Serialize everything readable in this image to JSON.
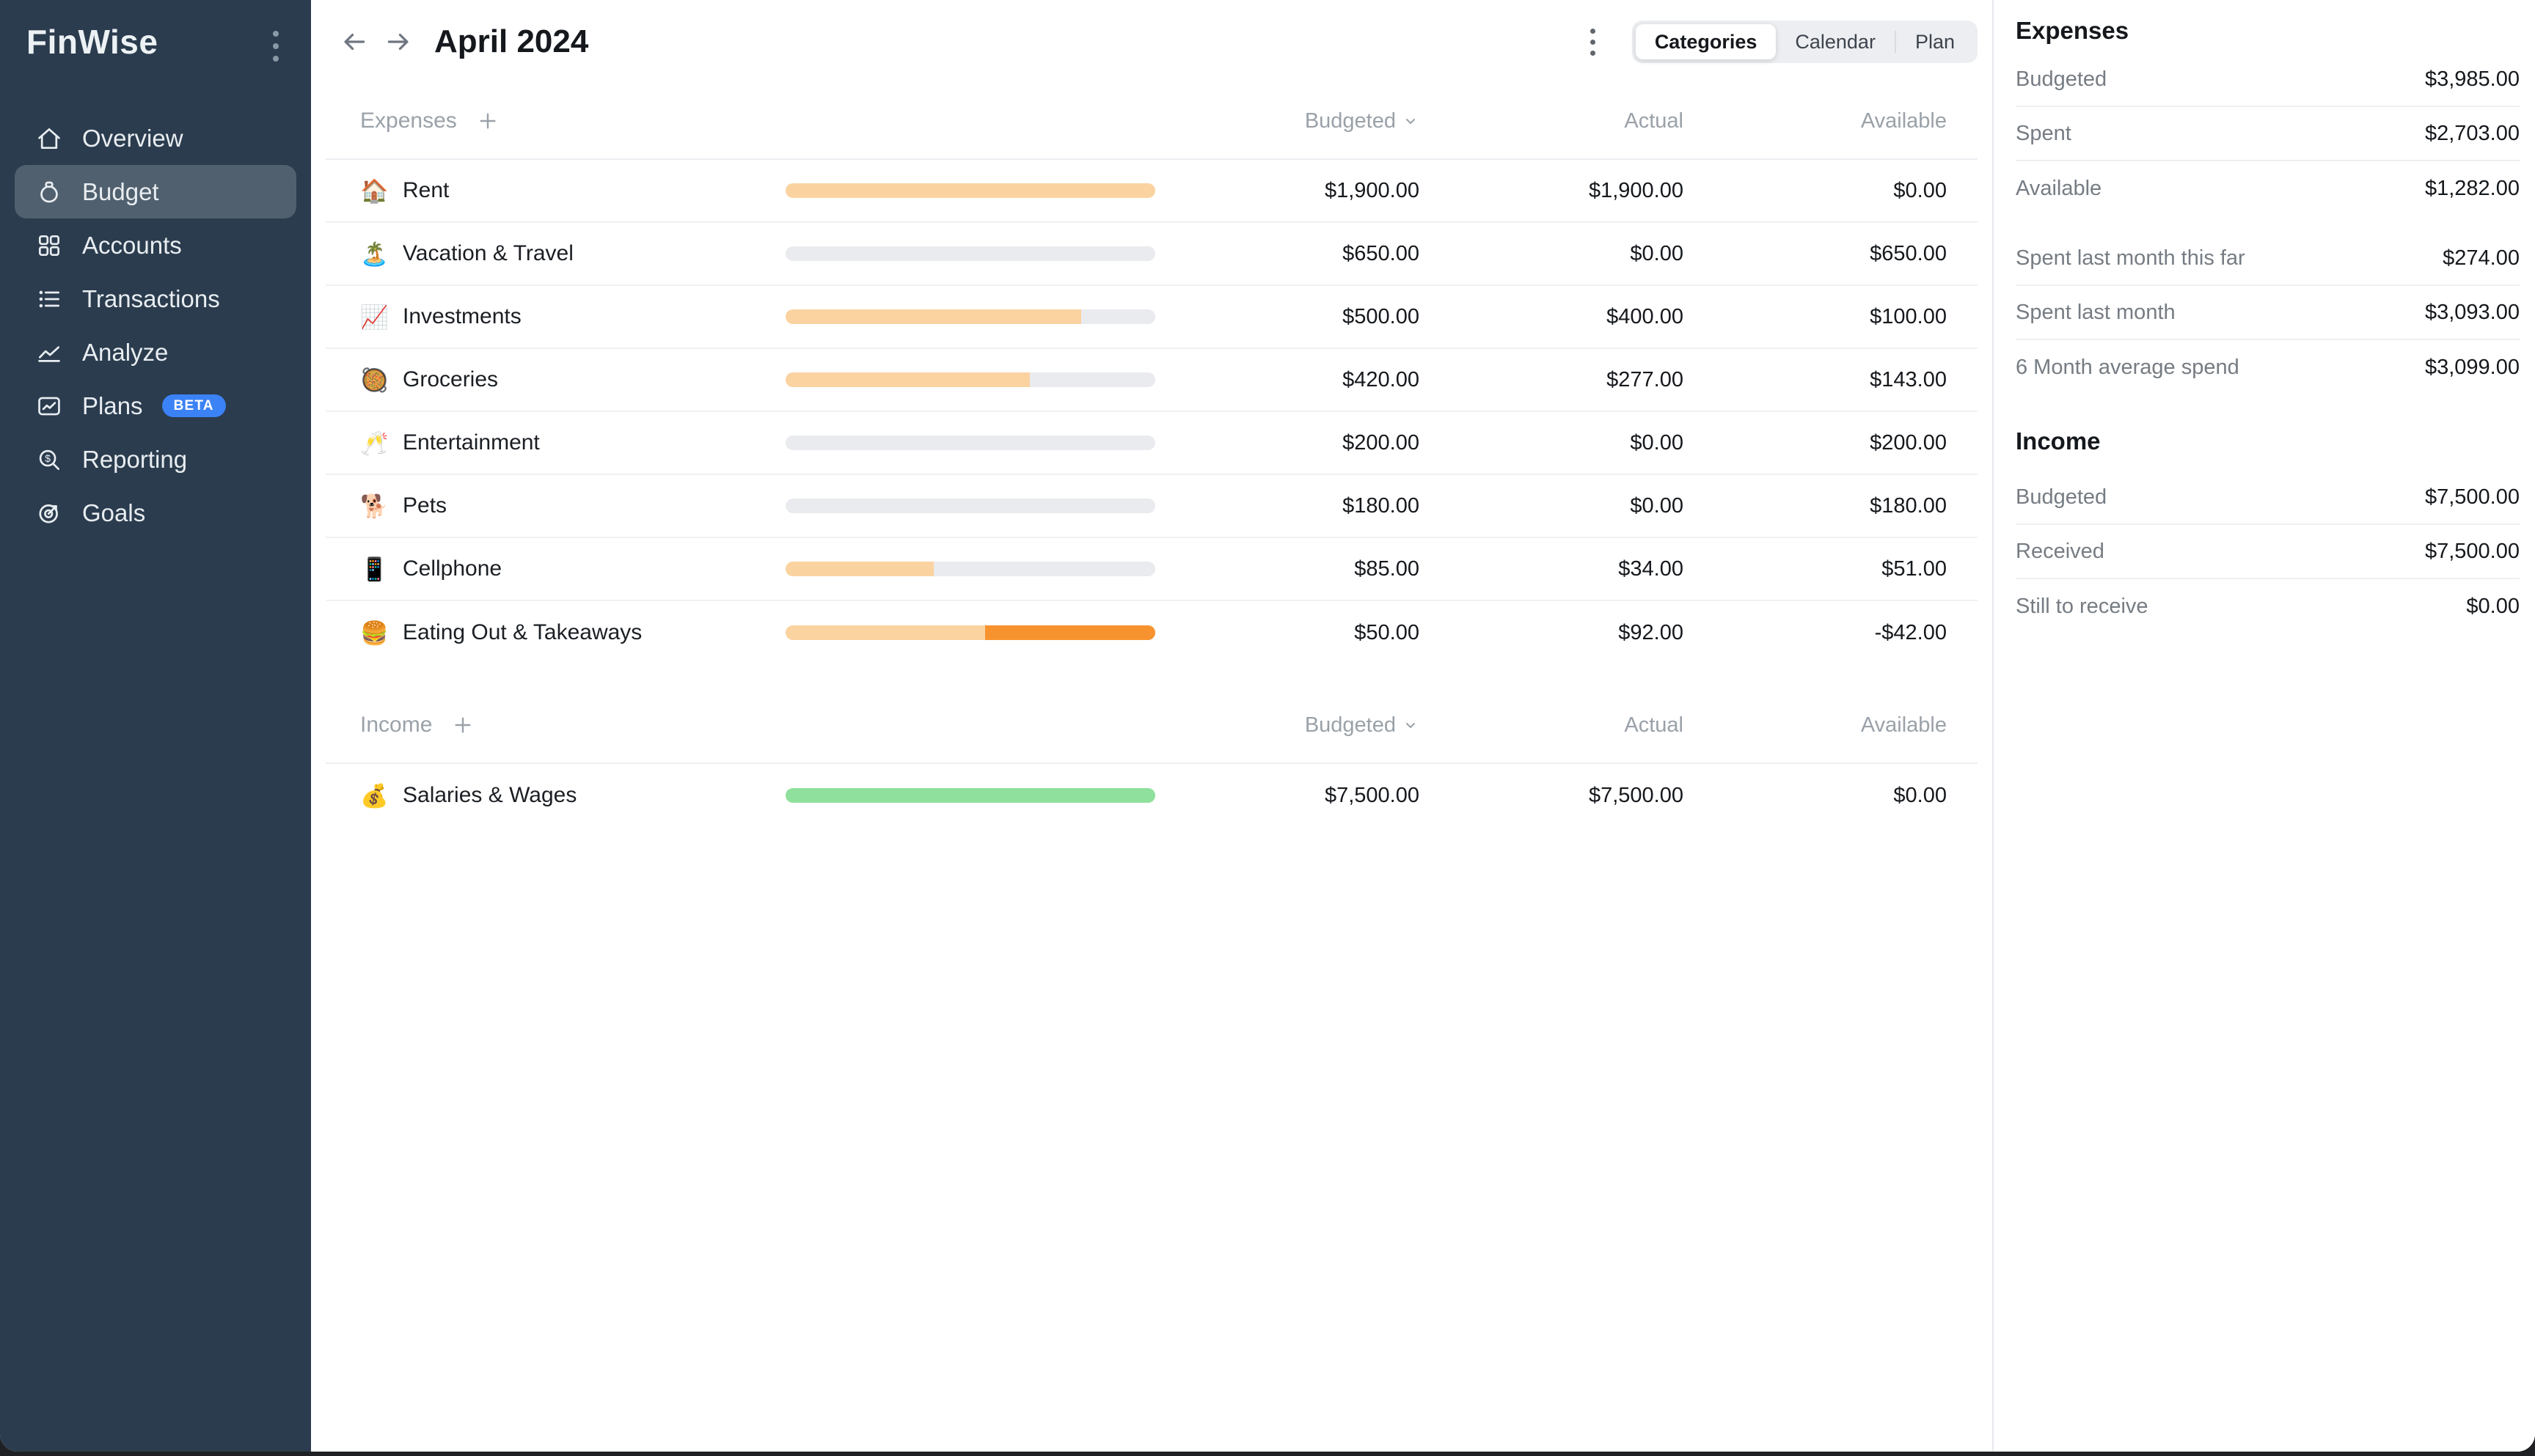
{
  "app": {
    "name": "FinWise"
  },
  "colors": {
    "sidebar_bg": "#2B3C4E",
    "sidebar_active": "#51606E",
    "badge_blue": "#3B82F6",
    "bar_track": "#E9EBEE",
    "bar_expense": "#FAD3A1",
    "bar_overspent": "#F7932F",
    "bar_income": "#8EE09C"
  },
  "sidebar": {
    "items": [
      {
        "label": "Overview",
        "icon": "home-icon",
        "active": false
      },
      {
        "label": "Budget",
        "icon": "money-bag-icon",
        "active": true
      },
      {
        "label": "Accounts",
        "icon": "grid-icon",
        "active": false
      },
      {
        "label": "Transactions",
        "icon": "list-icon",
        "active": false
      },
      {
        "label": "Analyze",
        "icon": "area-chart-icon",
        "active": false
      },
      {
        "label": "Plans",
        "icon": "line-chart-icon",
        "active": false,
        "badge": "BETA"
      },
      {
        "label": "Reporting",
        "icon": "search-dollar-icon",
        "active": false
      },
      {
        "label": "Goals",
        "icon": "target-icon",
        "active": false
      }
    ]
  },
  "header": {
    "title": "April 2024",
    "views": [
      "Categories",
      "Calendar",
      "Plan"
    ],
    "active_view": "Categories"
  },
  "table": {
    "sections": [
      {
        "title": "Expenses",
        "columns": [
          "Budgeted",
          "Actual",
          "Available"
        ],
        "rows": [
          {
            "emoji": "🏠",
            "name": "Rent",
            "budgeted": "$1,900.00",
            "actual": "$1,900.00",
            "available": "$0.00",
            "bar": {
              "fill_pct": 100,
              "over_pct": 0,
              "kind": "expense"
            }
          },
          {
            "emoji": "🏝️",
            "name": "Vacation & Travel",
            "budgeted": "$650.00",
            "actual": "$0.00",
            "available": "$650.00",
            "bar": {
              "fill_pct": 0,
              "over_pct": 0,
              "kind": "expense"
            }
          },
          {
            "emoji": "📈",
            "name": "Investments",
            "budgeted": "$500.00",
            "actual": "$400.00",
            "available": "$100.00",
            "bar": {
              "fill_pct": 80,
              "over_pct": 0,
              "kind": "expense"
            }
          },
          {
            "emoji": "🥘",
            "name": "Groceries",
            "budgeted": "$420.00",
            "actual": "$277.00",
            "available": "$143.00",
            "bar": {
              "fill_pct": 66,
              "over_pct": 0,
              "kind": "expense"
            }
          },
          {
            "emoji": "🥂",
            "name": "Entertainment",
            "budgeted": "$200.00",
            "actual": "$0.00",
            "available": "$200.00",
            "bar": {
              "fill_pct": 0,
              "over_pct": 0,
              "kind": "expense"
            }
          },
          {
            "emoji": "🐕",
            "name": "Pets",
            "budgeted": "$180.00",
            "actual": "$0.00",
            "available": "$180.00",
            "bar": {
              "fill_pct": 0,
              "over_pct": 0,
              "kind": "expense"
            }
          },
          {
            "emoji": "📱",
            "name": "Cellphone",
            "budgeted": "$85.00",
            "actual": "$34.00",
            "available": "$51.00",
            "bar": {
              "fill_pct": 40,
              "over_pct": 0,
              "kind": "expense"
            }
          },
          {
            "emoji": "🍔",
            "name": "Eating Out & Takeaways",
            "budgeted": "$50.00",
            "actual": "$92.00",
            "available": "-$42.00",
            "bar": {
              "fill_pct": 54,
              "over_pct": 46,
              "kind": "expense"
            }
          }
        ]
      },
      {
        "title": "Income",
        "columns": [
          "Budgeted",
          "Actual",
          "Available"
        ],
        "rows": [
          {
            "emoji": "💰",
            "name": "Salaries & Wages",
            "budgeted": "$7,500.00",
            "actual": "$7,500.00",
            "available": "$0.00",
            "bar": {
              "fill_pct": 100,
              "over_pct": 0,
              "kind": "income"
            }
          }
        ]
      }
    ]
  },
  "summary": {
    "expenses": {
      "title": "Expenses",
      "groups": [
        [
          {
            "label": "Budgeted",
            "value": "$3,985.00"
          },
          {
            "label": "Spent",
            "value": "$2,703.00"
          },
          {
            "label": "Available",
            "value": "$1,282.00"
          }
        ],
        [
          {
            "label": "Spent last month this far",
            "value": "$274.00"
          },
          {
            "label": "Spent last month",
            "value": "$3,093.00"
          },
          {
            "label": "6 Month average spend",
            "value": "$3,099.00"
          }
        ]
      ]
    },
    "income": {
      "title": "Income",
      "groups": [
        [
          {
            "label": "Budgeted",
            "value": "$7,500.00"
          },
          {
            "label": "Received",
            "value": "$7,500.00"
          },
          {
            "label": "Still to receive",
            "value": "$0.00"
          }
        ]
      ]
    }
  }
}
